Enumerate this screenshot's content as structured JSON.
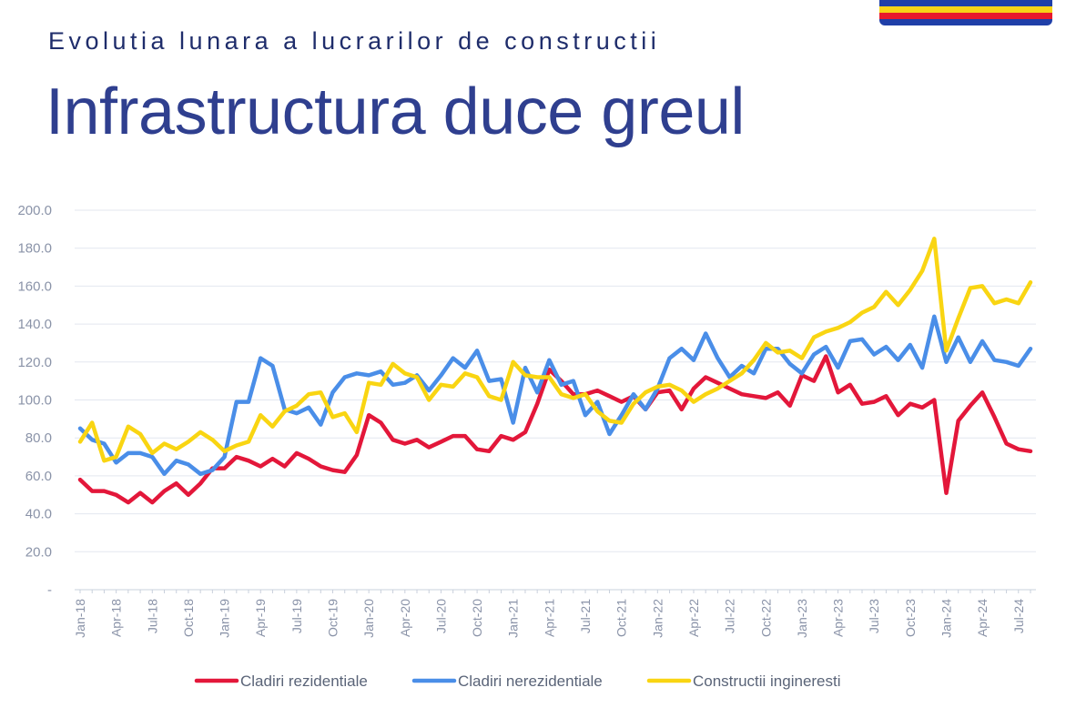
{
  "header": {
    "subtitle": "Evolutia lunara a lucrarilor de constructii",
    "title": "Infrastructura duce greul"
  },
  "flag_colors": [
    "#1f3fa8",
    "#f7d417",
    "#e8192c",
    "#1f3fa8"
  ],
  "chart_data": {
    "type": "line",
    "title": "",
    "xlabel": "",
    "ylabel": "",
    "ylim": [
      0,
      200
    ],
    "y_ticks": [
      "-",
      "20.0",
      "40.0",
      "60.0",
      "80.0",
      "100.0",
      "120.0",
      "140.0",
      "160.0",
      "180.0",
      "200.0"
    ],
    "x_labels": [
      "Jan-18",
      "Apr-18",
      "Jul-18",
      "Oct-18",
      "Jan-19",
      "Apr-19",
      "Jul-19",
      "Oct-19",
      "Jan-20",
      "Apr-20",
      "Jul-20",
      "Oct-20",
      "Jan-21",
      "Apr-21",
      "Jul-21",
      "Oct-21",
      "Jan-22",
      "Apr-22",
      "Jul-22",
      "Oct-22",
      "Jan-23",
      "Apr-23",
      "Jul-23",
      "Oct-23",
      "Jan-24",
      "Apr-24",
      "Jul-24"
    ],
    "x": [
      "Jan-18",
      "Feb-18",
      "Mar-18",
      "Apr-18",
      "May-18",
      "Jun-18",
      "Jul-18",
      "Aug-18",
      "Sep-18",
      "Oct-18",
      "Nov-18",
      "Dec-18",
      "Jan-19",
      "Feb-19",
      "Mar-19",
      "Apr-19",
      "May-19",
      "Jun-19",
      "Jul-19",
      "Aug-19",
      "Sep-19",
      "Oct-19",
      "Nov-19",
      "Dec-19",
      "Jan-20",
      "Feb-20",
      "Mar-20",
      "Apr-20",
      "May-20",
      "Jun-20",
      "Jul-20",
      "Aug-20",
      "Sep-20",
      "Oct-20",
      "Nov-20",
      "Dec-20",
      "Jan-21",
      "Feb-21",
      "Mar-21",
      "Apr-21",
      "May-21",
      "Jun-21",
      "Jul-21",
      "Aug-21",
      "Sep-21",
      "Oct-21",
      "Nov-21",
      "Dec-21",
      "Jan-22",
      "Feb-22",
      "Mar-22",
      "Apr-22",
      "May-22",
      "Jun-22",
      "Jul-22",
      "Aug-22",
      "Sep-22",
      "Oct-22",
      "Nov-22",
      "Dec-22",
      "Jan-23",
      "Feb-23",
      "Mar-23",
      "Apr-23",
      "May-23",
      "Jun-23",
      "Jul-23",
      "Aug-23",
      "Sep-23",
      "Oct-23",
      "Nov-23",
      "Dec-23",
      "Jan-24",
      "Feb-24",
      "Mar-24",
      "Apr-24",
      "May-24",
      "Jun-24",
      "Jul-24",
      "Aug-24"
    ],
    "grid": true,
    "legend_position": "bottom-center",
    "series": [
      {
        "name": "Cladiri rezidentiale",
        "color": "#e3173a",
        "values": [
          58,
          52,
          52,
          50,
          46,
          51,
          46,
          52,
          56,
          50,
          56,
          64,
          64,
          70,
          68,
          65,
          69,
          65,
          72,
          69,
          65,
          63,
          62,
          71,
          92,
          88,
          79,
          77,
          79,
          75,
          78,
          81,
          81,
          74,
          73,
          81,
          79,
          83,
          98,
          116,
          110,
          103,
          103,
          105,
          102,
          99,
          102,
          95,
          104,
          105,
          95,
          106,
          112,
          109,
          106,
          103,
          102,
          101,
          104,
          97,
          113,
          110,
          123,
          104,
          108,
          98,
          99,
          102,
          92,
          98,
          96,
          100,
          51,
          89,
          97,
          104,
          91,
          77,
          74,
          73
        ]
      },
      {
        "name": "Cladiri nerezidentiale",
        "color": "#4a8ee8",
        "values": [
          85,
          79,
          77,
          67,
          72,
          72,
          70,
          61,
          68,
          66,
          61,
          63,
          70,
          99,
          99,
          122,
          118,
          95,
          93,
          96,
          87,
          104,
          112,
          114,
          113,
          115,
          108,
          109,
          113,
          105,
          113,
          122,
          117,
          126,
          110,
          111,
          88,
          117,
          104,
          121,
          108,
          110,
          92,
          99,
          82,
          92,
          103,
          95,
          106,
          122,
          127,
          121,
          135,
          122,
          112,
          118,
          114,
          127,
          127,
          119,
          114,
          124,
          128,
          117,
          131,
          132,
          124,
          128,
          121,
          129,
          117,
          144,
          120,
          133,
          120,
          131,
          121,
          120,
          118,
          127
        ]
      },
      {
        "name": "Constructii ingineresti",
        "color": "#f9d512",
        "values": [
          78,
          88,
          68,
          70,
          86,
          82,
          72,
          77,
          74,
          78,
          83,
          79,
          73,
          76,
          78,
          92,
          86,
          94,
          97,
          103,
          104,
          91,
          93,
          83,
          109,
          108,
          119,
          114,
          112,
          100,
          108,
          107,
          114,
          112,
          102,
          100,
          120,
          113,
          112,
          112,
          103,
          101,
          103,
          94,
          89,
          88,
          98,
          104,
          107,
          108,
          105,
          99,
          103,
          106,
          110,
          114,
          121,
          130,
          125,
          126,
          122,
          133,
          136,
          138,
          141,
          146,
          149,
          157,
          150,
          158,
          168,
          185,
          126,
          143,
          159,
          160,
          151,
          153,
          151,
          162
        ]
      }
    ]
  }
}
